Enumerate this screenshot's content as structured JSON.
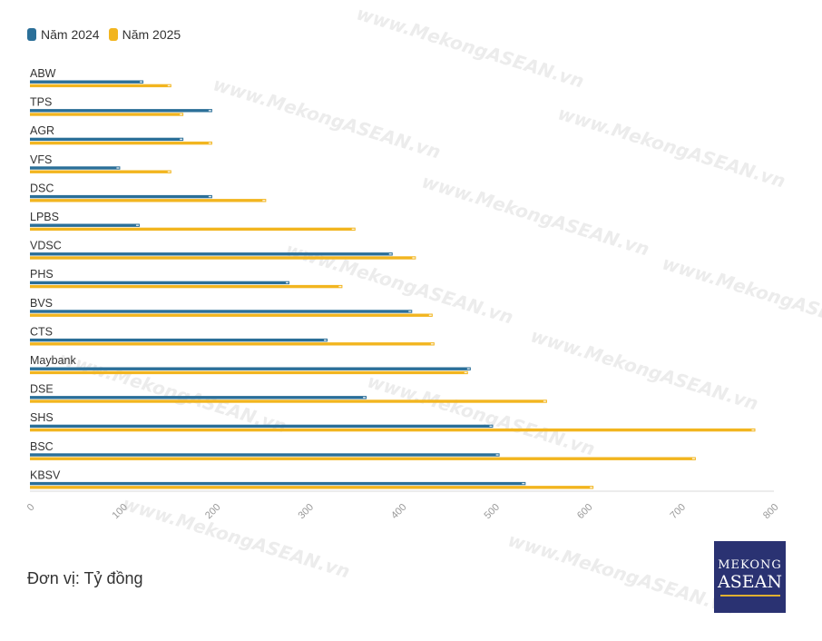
{
  "legend": [
    {
      "name": "Năm 2024",
      "color": "#2b6f98"
    },
    {
      "name": "Năm 2025",
      "color": "#f2b51f"
    }
  ],
  "unit_note": "Đơn vị: Tỷ đồng",
  "logo": {
    "line1": "MEKONG",
    "line2": "ASEAN"
  },
  "watermark_text": "www.MekongASEAN.vn",
  "chart_data": {
    "type": "bar",
    "orientation": "horizontal",
    "categories": [
      "ABW",
      "TPS",
      "AGR",
      "VFS",
      "DSC",
      "LPBS",
      "VDSC",
      "PHS",
      "BVS",
      "CTS",
      "Maybank",
      "DSE",
      "SHS",
      "BSC",
      "KBSV"
    ],
    "series": [
      {
        "name": "Năm 2024",
        "color": "#2b6f98",
        "values": [
          122,
          196,
          165,
          97,
          196,
          118,
          390,
          279,
          411,
          320,
          474,
          362,
          498,
          505,
          533
        ]
      },
      {
        "name": "Năm 2025",
        "color": "#f2b51f",
        "values": [
          152,
          165,
          196,
          152,
          254,
          350,
          415,
          336,
          433,
          435,
          471,
          556,
          780,
          716,
          606
        ]
      }
    ],
    "xlim": [
      0,
      800
    ],
    "xticks": [
      0,
      100,
      200,
      300,
      400,
      500,
      600,
      700,
      800
    ],
    "grid": false,
    "legend_position": "top-left"
  }
}
